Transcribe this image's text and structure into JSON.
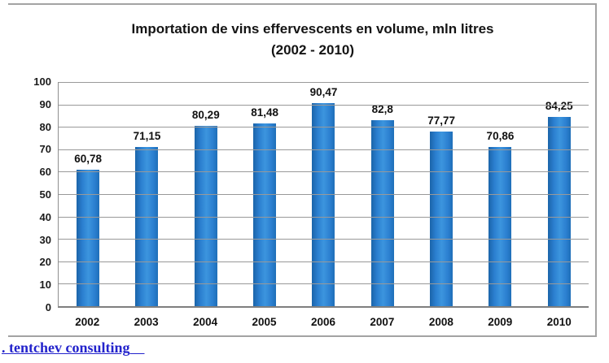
{
  "chart_data": {
    "type": "bar",
    "title": "Importation de vins effervescents en volume, mln litres",
    "subtitle": "(2002 - 2010)",
    "categories": [
      "2002",
      "2003",
      "2004",
      "2005",
      "2006",
      "2007",
      "2008",
      "2009",
      "2010"
    ],
    "values": [
      60.78,
      71.15,
      80.29,
      81.48,
      90.47,
      82.8,
      77.77,
      70.86,
      84.25
    ],
    "value_labels": [
      "60,78",
      "71,15",
      "80,29",
      "81,48",
      "90,47",
      "82,8",
      "77,77",
      "70,86",
      "84,25"
    ],
    "ylim": [
      0,
      100
    ],
    "yticks": [
      0,
      10,
      20,
      30,
      40,
      50,
      60,
      70,
      80,
      90,
      100
    ],
    "grid": true,
    "legend": "none",
    "bar_color": "#2b7fd0",
    "gridline_color": "#999999",
    "axis_color": "#7f7f7f"
  },
  "footer": {
    "link_text": ". tentchev consulting"
  }
}
